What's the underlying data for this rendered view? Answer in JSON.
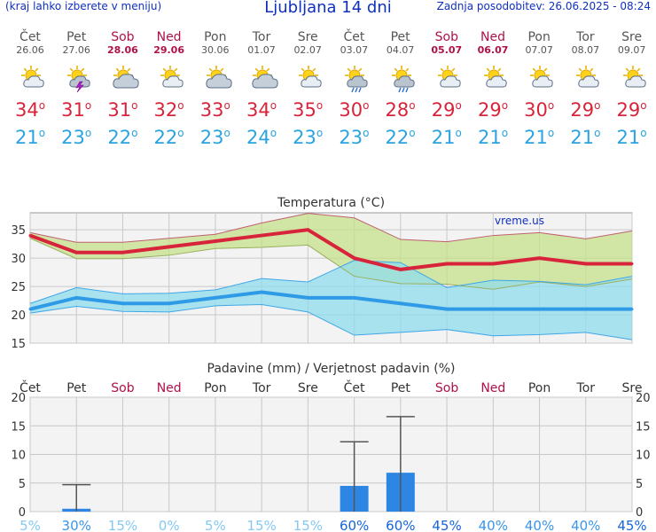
{
  "header": {
    "menu_hint": "(kraj lahko izberete v meniju)",
    "title": "Ljubljana 14 dni",
    "updated": "Zadnja posodobitev: 26.06.2025 - 08:24"
  },
  "days": [
    {
      "name": "Čet",
      "date": "26.06",
      "weekend": false,
      "icon": "sun-cloud-icon",
      "tmax": "34",
      "tmin": "21"
    },
    {
      "name": "Pet",
      "date": "27.06",
      "weekend": false,
      "icon": "thunderstorm-icon",
      "tmax": "31",
      "tmin": "23"
    },
    {
      "name": "Sob",
      "date": "28.06",
      "weekend": true,
      "icon": "cloudy-icon",
      "tmax": "31",
      "tmin": "22"
    },
    {
      "name": "Ned",
      "date": "29.06",
      "weekend": true,
      "icon": "sun-cloud-icon",
      "tmax": "32",
      "tmin": "22"
    },
    {
      "name": "Pon",
      "date": "30.06",
      "weekend": false,
      "icon": "cloudy-icon",
      "tmax": "33",
      "tmin": "23"
    },
    {
      "name": "Tor",
      "date": "01.07",
      "weekend": false,
      "icon": "cloudy-icon",
      "tmax": "34",
      "tmin": "24"
    },
    {
      "name": "Sre",
      "date": "02.07",
      "weekend": false,
      "icon": "sun-cloud-icon",
      "tmax": "35",
      "tmin": "23"
    },
    {
      "name": "Čet",
      "date": "03.07",
      "weekend": false,
      "icon": "sun-rain-icon",
      "tmax": "30",
      "tmin": "23"
    },
    {
      "name": "Pet",
      "date": "04.07",
      "weekend": false,
      "icon": "sun-rain-icon",
      "tmax": "28",
      "tmin": "22"
    },
    {
      "name": "Sob",
      "date": "05.07",
      "weekend": true,
      "icon": "sun-cloud-icon",
      "tmax": "29",
      "tmin": "21"
    },
    {
      "name": "Ned",
      "date": "06.07",
      "weekend": true,
      "icon": "sun-cloud-icon",
      "tmax": "29",
      "tmin": "21"
    },
    {
      "name": "Pon",
      "date": "07.07",
      "weekend": false,
      "icon": "sun-cloud-icon",
      "tmax": "30",
      "tmin": "21"
    },
    {
      "name": "Tor",
      "date": "08.07",
      "weekend": false,
      "icon": "sun-cloud-icon",
      "tmax": "29",
      "tmin": "21"
    },
    {
      "name": "Sre",
      "date": "09.07",
      "weekend": false,
      "icon": "sun-cloud-icon",
      "tmax": "29",
      "tmin": "21"
    }
  ],
  "chart_data": [
    {
      "type": "line",
      "title": "Temperatura (°C)",
      "watermark": "vreme.us",
      "ylim": [
        15,
        38
      ],
      "yticks": [
        15,
        20,
        25,
        30,
        35
      ],
      "categories": [
        "Čet",
        "Pet",
        "Sob",
        "Ned",
        "Pon",
        "Tor",
        "Sre",
        "Čet",
        "Pet",
        "Sob",
        "Ned",
        "Pon",
        "Tor",
        "Sre"
      ],
      "series": [
        {
          "name": "max",
          "color": "#d8243a",
          "values": [
            34,
            31,
            31,
            32,
            33,
            34,
            35,
            30,
            28,
            29,
            29,
            30,
            29,
            29
          ]
        },
        {
          "name": "min",
          "color": "#2f9be6",
          "values": [
            21,
            23,
            22,
            22,
            23,
            24,
            23,
            23,
            22,
            21,
            21,
            21,
            21,
            21
          ]
        }
      ],
      "max_band": {
        "color": "#c6e08a",
        "upper": [
          34.5,
          32.8,
          32.8,
          33.5,
          34.2,
          36.2,
          37.9,
          37.1,
          33.3,
          32.9,
          34,
          34.5,
          33.4,
          34.8
        ],
        "lower": [
          33.5,
          29.9,
          29.9,
          30.5,
          31.7,
          31.9,
          32.3,
          26.8,
          25.5,
          25.4,
          24.5,
          25.8,
          25,
          26.3
        ]
      },
      "min_band": {
        "color": "#8fdcec",
        "upper": [
          22,
          24.8,
          23.7,
          23.8,
          24.4,
          26.4,
          25.8,
          29.6,
          29.2,
          24.8,
          26.1,
          25.9,
          25.3,
          26.8
        ],
        "lower": [
          20.3,
          21.5,
          20.6,
          20.5,
          21.6,
          21.8,
          20.5,
          16.4,
          16.9,
          17.4,
          16.3,
          16.5,
          16.9,
          15.6
        ]
      }
    },
    {
      "type": "bar",
      "title": "Padavine (mm) / Verjetnost padavin (%)",
      "ylim": [
        0,
        20
      ],
      "yticks": [
        0,
        5,
        10,
        15,
        20
      ],
      "categories": [
        "Čet",
        "Pet",
        "Sob",
        "Ned",
        "Pon",
        "Tor",
        "Sre",
        "Čet",
        "Pet",
        "Sob",
        "Ned",
        "Pon",
        "Tor",
        "Sre"
      ],
      "bar_color": "#2d86e4",
      "values": [
        0,
        0.5,
        0,
        0,
        0,
        0,
        0,
        4.5,
        6.8,
        0,
        0,
        0,
        0,
        0
      ],
      "error_max": [
        null,
        4.7,
        null,
        null,
        null,
        null,
        null,
        12.2,
        16.6,
        null,
        null,
        null,
        null,
        null
      ],
      "probability": [
        "5%",
        "30%",
        "15%",
        "0%",
        "5%",
        "15%",
        "15%",
        "60%",
        "60%",
        "45%",
        "40%",
        "40%",
        "40%",
        "45%"
      ],
      "probability_values": [
        5,
        30,
        15,
        0,
        5,
        15,
        15,
        60,
        60,
        45,
        40,
        40,
        40,
        45
      ]
    }
  ],
  "colors": {
    "title_blue": "#1030c0",
    "weekend": "#b0104a",
    "tmax": "#d8243a",
    "tmin": "#2aa3e0",
    "grid": "#c8c8c8",
    "panel_bg": "#f3f3f3"
  }
}
